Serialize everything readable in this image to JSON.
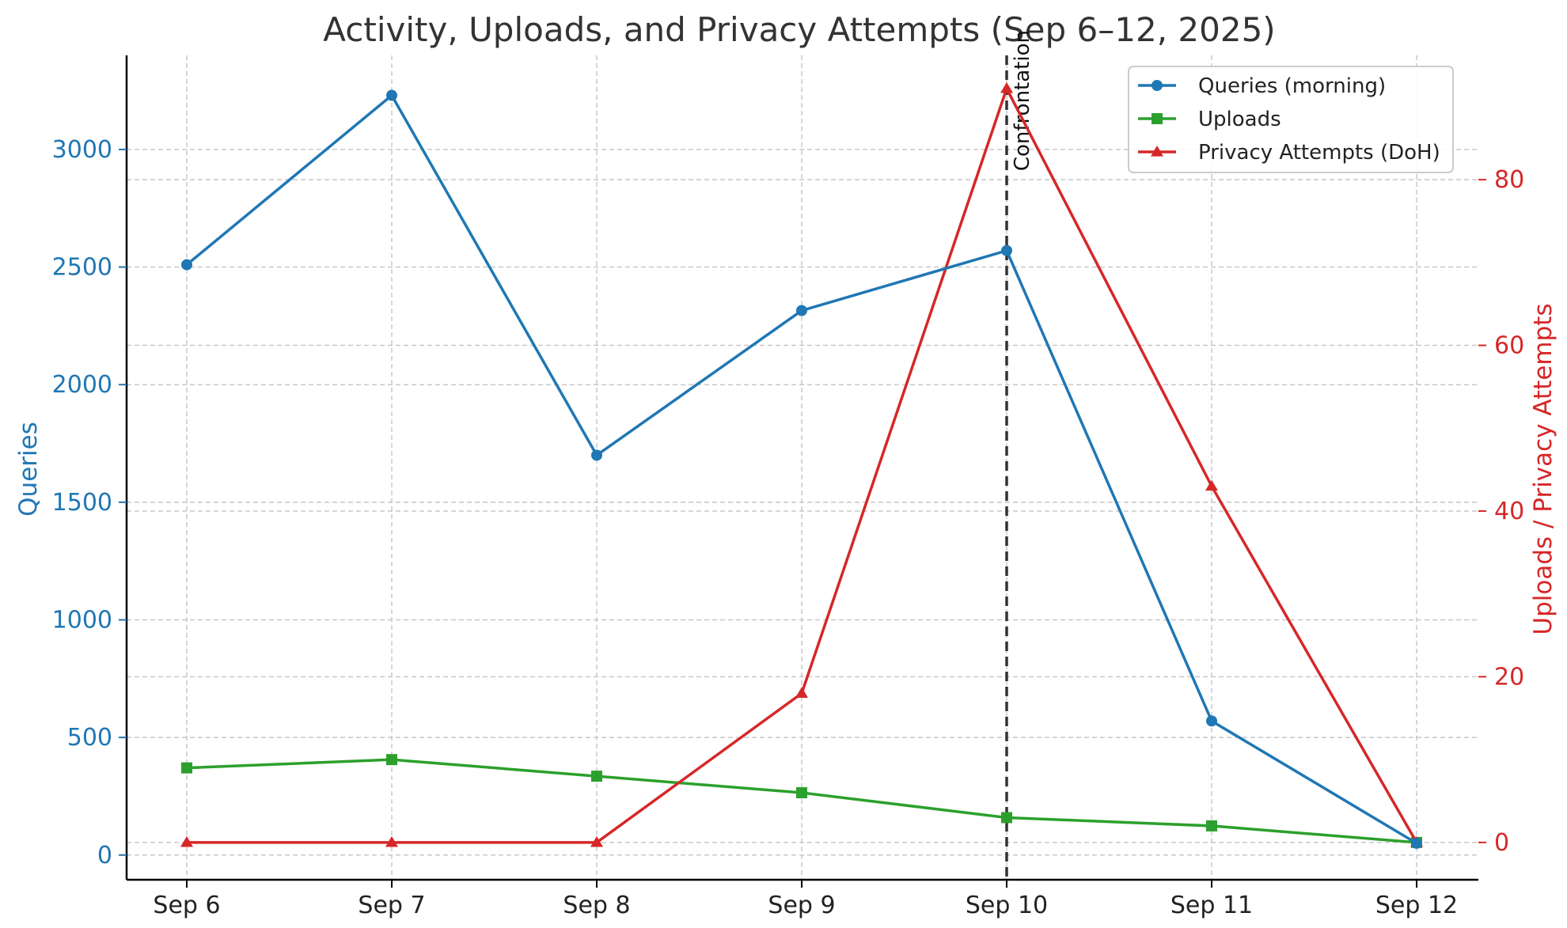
{
  "chart_data": {
    "type": "line",
    "title": "Activity, Uploads, and Privacy Attempts (Sep 6–12, 2025)",
    "categories": [
      "Sep 6",
      "Sep 7",
      "Sep 8",
      "Sep 9",
      "Sep 10",
      "Sep 11",
      "Sep 12"
    ],
    "y_left": {
      "label": "Queries",
      "ticks": [
        0,
        500,
        1000,
        1500,
        2000,
        2500,
        3000
      ],
      "range": [
        -105,
        3400
      ]
    },
    "y_right": {
      "label": "Uploads / Privacy Attempts",
      "ticks": [
        0,
        20,
        40,
        60,
        80
      ],
      "range": [
        -4.5,
        95
      ]
    },
    "series": [
      {
        "name": "Queries (morning)",
        "axis": "left",
        "color": "#1f77b4",
        "marker": "circle",
        "values": [
          2510,
          3230,
          1700,
          2315,
          2570,
          570,
          50
        ]
      },
      {
        "name": "Uploads",
        "axis": "right",
        "color": "#2ca02c",
        "marker": "square",
        "values": [
          9,
          10,
          8,
          6,
          3,
          2,
          0
        ]
      },
      {
        "name": "Privacy Attempts (DoH)",
        "axis": "right",
        "color": "#d62728",
        "marker": "triangle",
        "values": [
          0,
          0,
          0,
          18,
          91,
          43,
          0
        ]
      }
    ],
    "annotation": {
      "label": "Confrontation",
      "x": "Sep 10",
      "style": "dashed",
      "color": "#333333"
    },
    "grid": true,
    "legend_position": "top-right"
  }
}
